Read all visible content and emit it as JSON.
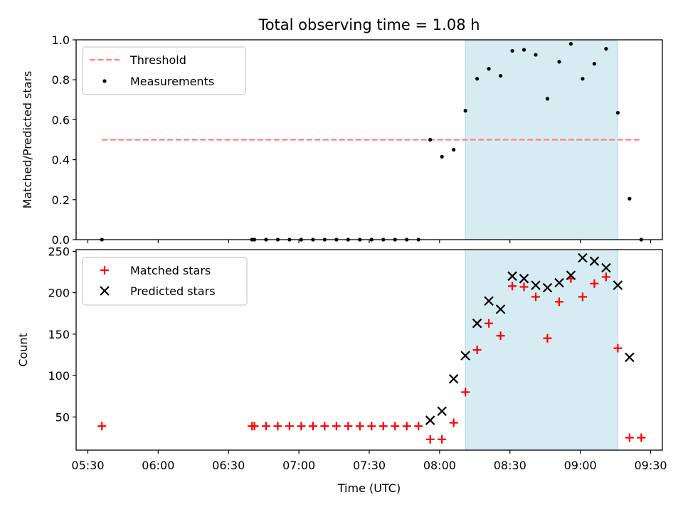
{
  "chart_data": [
    {
      "type": "scatter",
      "title": "Total observing time = 1.08 h",
      "xlabel": "",
      "ylabel": "Matched/Predicted stars",
      "ylim": [
        0.0,
        1.0
      ],
      "xlim": [
        "05:25",
        "09:35"
      ],
      "grid": false,
      "legend_position": "top-left",
      "yticks": [
        "0.0",
        "0.2",
        "0.4",
        "0.6",
        "0.8",
        "1.0"
      ],
      "highlight_span": [
        "08:11",
        "09:16"
      ],
      "highlight_color": "#add8e6",
      "threshold": {
        "name": "Threshold",
        "value": 0.5,
        "x_range": [
          "05:36",
          "09:26"
        ],
        "color": "#ff7f7f",
        "style": "dashed"
      },
      "series": [
        {
          "name": "Measurements",
          "color": "#000000",
          "marker": "dot",
          "x": [
            "05:36",
            "06:40",
            "06:41",
            "06:46",
            "06:51",
            "06:56",
            "07:01",
            "07:06",
            "07:11",
            "07:16",
            "07:21",
            "07:26",
            "07:31",
            "07:36",
            "07:41",
            "07:46",
            "07:51",
            "07:56",
            "08:01",
            "08:06",
            "08:11",
            "08:16",
            "08:21",
            "08:26",
            "08:31",
            "08:36",
            "08:41",
            "08:46",
            "08:51",
            "08:56",
            "09:01",
            "09:06",
            "09:11",
            "09:16",
            "09:21",
            "09:26"
          ],
          "y": [
            0.0,
            0.0,
            0.0,
            0.0,
            0.0,
            0.0,
            0.0,
            0.0,
            0.0,
            0.0,
            0.0,
            0.0,
            0.0,
            0.0,
            0.0,
            0.0,
            0.0,
            0.5,
            0.415,
            0.45,
            0.645,
            0.805,
            0.855,
            0.82,
            0.945,
            0.95,
            0.925,
            0.705,
            0.89,
            0.98,
            0.805,
            0.88,
            0.955,
            0.635,
            0.205,
            0.0
          ]
        }
      ]
    },
    {
      "type": "scatter",
      "xlabel": "Time (UTC)",
      "ylabel": "Count",
      "ylim": [
        10,
        252
      ],
      "xlim": [
        "05:25",
        "09:35"
      ],
      "grid": false,
      "legend_position": "top-left",
      "yticks": [
        "50",
        "100",
        "150",
        "200",
        "250"
      ],
      "xticks": [
        "05:30",
        "06:00",
        "06:30",
        "07:00",
        "07:30",
        "08:00",
        "08:30",
        "09:00",
        "09:30"
      ],
      "highlight_span": [
        "08:11",
        "09:16"
      ],
      "highlight_color": "#add8e6",
      "series": [
        {
          "name": "Matched stars",
          "color": "#ff0000",
          "marker": "plus",
          "x": [
            "05:36",
            "06:40",
            "06:41",
            "06:46",
            "06:51",
            "06:56",
            "07:01",
            "07:06",
            "07:11",
            "07:16",
            "07:21",
            "07:26",
            "07:31",
            "07:36",
            "07:41",
            "07:46",
            "07:51",
            "07:56",
            "08:01",
            "08:06",
            "08:11",
            "08:16",
            "08:21",
            "08:26",
            "08:31",
            "08:36",
            "08:41",
            "08:46",
            "08:51",
            "08:56",
            "09:01",
            "09:06",
            "09:11",
            "09:16",
            "09:21",
            "09:26"
          ],
          "y": [
            39,
            39,
            39,
            39,
            39,
            39,
            39,
            39,
            39,
            39,
            39,
            39,
            39,
            39,
            39,
            39,
            39,
            23,
            23,
            43,
            80,
            131,
            163,
            148,
            208,
            207,
            195,
            145,
            189,
            217,
            195,
            211,
            219,
            133,
            25,
            25
          ]
        },
        {
          "name": "Predicted stars",
          "color": "#000000",
          "marker": "x",
          "x": [
            "07:56",
            "08:01",
            "08:06",
            "08:11",
            "08:16",
            "08:21",
            "08:26",
            "08:31",
            "08:36",
            "08:41",
            "08:46",
            "08:51",
            "08:56",
            "09:01",
            "09:06",
            "09:11",
            "09:16",
            "09:21"
          ],
          "y": [
            46,
            57,
            96,
            124,
            163,
            190,
            180,
            220,
            217,
            209,
            206,
            212,
            221,
            242,
            238,
            230,
            209,
            122
          ]
        }
      ]
    }
  ]
}
